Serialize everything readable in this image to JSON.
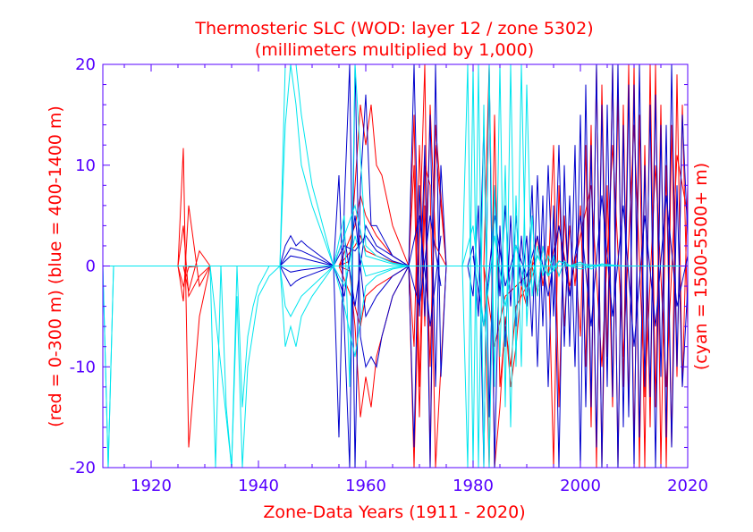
{
  "chart_data": {
    "type": "line",
    "title": "Thermosteric SLC (WOD: layer 12 / zone 5302)",
    "subtitle": "(millimeters multiplied by 1,000)",
    "xlabel": "Zone-Data Years (1911 - 2020)",
    "ylabel_left": "(red = 0-300 m)  (blue = 400-1400 m)",
    "ylabel_right": "(cyan = 1500-5500+ m)",
    "xlim": [
      1911,
      2020
    ],
    "ylim": [
      -20,
      20
    ],
    "x_ticks": [
      1920,
      1940,
      1960,
      1980,
      2000,
      2020
    ],
    "y_ticks": [
      -20,
      -10,
      0,
      10,
      20
    ],
    "grid": false,
    "colors": {
      "axis": "#5500ff",
      "text": "#ff0000"
    },
    "series": [
      {
        "group": "red",
        "color": "#ff0000",
        "x": [
          1925,
          1926,
          1927,
          1929,
          1931,
          1955,
          1957,
          1958,
          1959,
          1960,
          1961,
          1962,
          1963,
          1965,
          1968,
          1969,
          1970,
          1971,
          1972,
          1973,
          1975,
          1977
        ],
        "values": [
          0,
          11.7,
          -18,
          -5,
          0,
          0,
          0.5,
          8,
          16,
          12,
          16,
          10,
          9,
          4,
          0,
          -20,
          2,
          20,
          -20,
          14,
          0,
          0
        ]
      },
      {
        "group": "red",
        "color": "#ff0000",
        "x": [
          1925,
          1926,
          1927,
          1929,
          1931,
          1955,
          1957,
          1958,
          1959,
          1960,
          1961,
          1962,
          1963,
          1965,
          1968,
          1969,
          1970,
          1971,
          1972,
          1973,
          1975,
          1977
        ],
        "values": [
          0,
          4,
          -3,
          -1,
          0,
          0,
          -0.5,
          -6,
          -15,
          -11,
          -14,
          -9,
          -7,
          -3,
          0,
          15,
          -12,
          10,
          8,
          -20,
          0,
          0
        ]
      },
      {
        "group": "red",
        "color": "#ff0000",
        "x": [
          1925,
          1926,
          1927,
          1929,
          1931,
          1955,
          1958,
          1959,
          1960,
          1962,
          1965,
          1968,
          1969,
          1970,
          1971,
          1972,
          1973,
          1975
        ],
        "values": [
          0,
          -2,
          -0.1,
          0,
          0,
          0,
          4,
          7,
          5,
          3,
          1,
          0,
          -8,
          12,
          -6,
          16,
          2,
          0
        ]
      },
      {
        "group": "red",
        "color": "#ff0000",
        "x": [
          1925,
          1926,
          1927,
          1929,
          1931,
          1955,
          1958,
          1959,
          1960,
          1962,
          1965,
          1968,
          1969,
          1970,
          1971,
          1972,
          1973,
          1975
        ],
        "values": [
          0,
          -3.5,
          6,
          -2,
          0,
          0,
          -4,
          -6,
          -3,
          -2,
          -1,
          0,
          10,
          -15,
          6,
          -10,
          12,
          0
        ]
      },
      {
        "group": "red",
        "color": "#ff0000",
        "x": [
          1925,
          1926,
          1927,
          1929,
          1931,
          1955,
          1958,
          1959,
          1960,
          1962,
          1965,
          1968
        ],
        "values": [
          0,
          0,
          -2.5,
          1.5,
          0,
          0,
          2,
          3,
          1.5,
          1,
          0.4,
          0
        ]
      },
      {
        "group": "red",
        "color": "#ff0000",
        "x": [
          1982,
          1983,
          1984,
          1985,
          1986,
          1987,
          1988,
          1989,
          1990,
          1991,
          1992,
          1993,
          1994,
          1995,
          1996,
          1997,
          1998,
          1999,
          2000,
          2001,
          2002,
          2003,
          2004,
          2005,
          2006,
          2007,
          2008,
          2009,
          2010,
          2011,
          2012,
          2013,
          2014,
          2015,
          2016,
          2017,
          2018,
          2019,
          2020
        ],
        "values": [
          0,
          20,
          -20,
          -14,
          -5,
          -12,
          -8,
          -2,
          -4,
          0,
          3,
          -2,
          2,
          -20,
          8,
          -6,
          4,
          -2,
          6,
          -10,
          14,
          -20,
          18,
          -9,
          20,
          -20,
          16,
          -14,
          20,
          -20,
          12,
          -16,
          20,
          -20,
          10,
          -18,
          19,
          -12,
          8
        ]
      },
      {
        "group": "red",
        "color": "#ff0000",
        "x": [
          1982,
          1983,
          1984,
          1985,
          1986,
          1987,
          1988,
          1989,
          1990,
          1991,
          1992,
          1993,
          1994,
          1995,
          1996,
          1997,
          1998,
          1999,
          2000,
          2001,
          2002,
          2003,
          2004,
          2005,
          2006,
          2007,
          2008,
          2009,
          2010,
          2011,
          2012,
          2013,
          2014,
          2015,
          2016,
          2017,
          2018,
          2019,
          2020
        ],
        "values": [
          0,
          -20,
          15,
          -12,
          -6,
          -10,
          -4,
          -3,
          -2,
          0,
          -3,
          2,
          -1,
          12,
          -14,
          5,
          -3,
          1,
          -7,
          12,
          -16,
          20,
          -20,
          8,
          -14,
          17,
          -12,
          20,
          -18,
          15,
          -20,
          20,
          -14,
          16,
          -20,
          14,
          -11,
          16,
          -6
        ]
      },
      {
        "group": "red",
        "color": "#ff0000",
        "x": [
          1982,
          1984,
          1986,
          1988,
          1990,
          1992,
          1994,
          1996,
          1998,
          2000,
          2002,
          2004,
          2006,
          2008,
          2010,
          2012,
          2014,
          2016,
          2018,
          2020
        ],
        "values": [
          0,
          -8,
          -3,
          -2,
          -1,
          1,
          -1,
          4,
          -2,
          3,
          8,
          -10,
          12,
          -9,
          14,
          -13,
          10,
          -12,
          11,
          5
        ]
      },
      {
        "group": "blue",
        "color": "#0000cc",
        "x": [
          1944,
          1945,
          1946,
          1947,
          1948,
          1949,
          1954,
          1955,
          1956,
          1957,
          1958,
          1959,
          1960,
          1961,
          1962,
          1963,
          1965,
          1968,
          1969,
          1970,
          1971,
          1972,
          1973,
          1974,
          1975,
          1977
        ],
        "values": [
          0,
          2,
          3,
          2,
          2.5,
          2,
          0,
          -17,
          6,
          20,
          -20,
          8,
          17,
          4,
          4,
          3,
          1,
          0,
          20,
          -5,
          12,
          -20,
          20,
          -11,
          0,
          0
        ]
      },
      {
        "group": "blue",
        "color": "#0000cc",
        "x": [
          1944,
          1945,
          1946,
          1947,
          1948,
          1949,
          1954,
          1955,
          1956,
          1957,
          1958,
          1959,
          1960,
          1961,
          1962,
          1963,
          1965,
          1968,
          1969,
          1970,
          1971,
          1972,
          1973,
          1974,
          1975,
          1977
        ],
        "values": [
          0,
          -1,
          -2,
          -1.5,
          -1.2,
          -1,
          0,
          9,
          -6,
          -20,
          20,
          -7,
          -10,
          -9,
          -10,
          -7,
          -3,
          0,
          -18,
          8,
          -5,
          15,
          -12,
          10,
          0,
          0
        ]
      },
      {
        "group": "blue",
        "color": "#0000cc",
        "x": [
          1944,
          1946,
          1948,
          1954,
          1956,
          1958,
          1960,
          1962,
          1965,
          1968,
          1970,
          1972,
          1974
        ],
        "values": [
          0,
          1,
          0.8,
          0,
          3,
          -4,
          4,
          2,
          1,
          0,
          5,
          -6,
          3
        ]
      },
      {
        "group": "blue",
        "color": "#0000cc",
        "x": [
          1944,
          1946,
          1948,
          1954,
          1956,
          1958,
          1960,
          1962,
          1965,
          1968,
          1970,
          1972,
          1974
        ],
        "values": [
          0,
          -0.6,
          -0.4,
          0,
          -3,
          5,
          -5,
          -3,
          -1,
          0,
          -4,
          5,
          -2
        ]
      },
      {
        "group": "blue",
        "color": "#0000cc",
        "x": [
          1944,
          1946,
          1948,
          1954,
          1956,
          1958,
          1960,
          1962,
          1965,
          1968
        ],
        "values": [
          0,
          1.8,
          1.5,
          0,
          2,
          1.5,
          3,
          1.5,
          0.5,
          0
        ]
      },
      {
        "group": "blue",
        "color": "#0000cc",
        "x": [
          1979,
          1980,
          1981,
          1982,
          1983,
          1984,
          1985,
          1986,
          1987,
          1988,
          1989,
          1990,
          1991,
          1992,
          1993,
          1994,
          1995,
          1996,
          1997,
          1998,
          1999,
          2000,
          2001,
          2002,
          2003,
          2004,
          2005,
          2006,
          2007,
          2008,
          2009,
          2010,
          2011,
          2012,
          2013,
          2014,
          2015,
          2016,
          2017,
          2018,
          2019,
          2020
        ],
        "values": [
          0,
          -3,
          6,
          -20,
          20,
          -20,
          4,
          -8,
          5,
          -6,
          3,
          -4,
          8,
          -10,
          7,
          -12,
          6,
          -20,
          10,
          -8,
          12,
          -20,
          18,
          -14,
          20,
          -20,
          16,
          -13,
          20,
          -16,
          18,
          -20,
          20,
          -12,
          16,
          -20,
          14,
          -17,
          20,
          -10,
          15,
          3
        ]
      },
      {
        "group": "blue",
        "color": "#0000cc",
        "x": [
          1979,
          1980,
          1981,
          1982,
          1983,
          1984,
          1985,
          1986,
          1987,
          1988,
          1989,
          1990,
          1991,
          1992,
          1993,
          1994,
          1995,
          1996,
          1997,
          1998,
          1999,
          2000,
          2001,
          2002,
          2003,
          2004,
          2005,
          2006,
          2007,
          2008,
          2009,
          2010,
          2011,
          2012,
          2013,
          2014,
          2015,
          2016,
          2017,
          2018,
          2019,
          2020
        ],
        "values": [
          0,
          2,
          -5,
          14,
          -15,
          8,
          -3,
          6,
          -4,
          5,
          -2,
          3,
          -7,
          9,
          -6,
          10,
          -5,
          12,
          -8,
          7,
          -10,
          15,
          -14,
          12,
          -18,
          16,
          -12,
          20,
          -20,
          14,
          -15,
          18,
          -17,
          10,
          -13,
          17,
          -11,
          14,
          -18,
          8,
          -12,
          -2
        ]
      },
      {
        "group": "blue",
        "color": "#0000cc",
        "x": [
          1980,
          1982,
          1984,
          1986,
          1988,
          1990,
          1992,
          1994,
          1996,
          1998,
          2000,
          2002,
          2004,
          2006,
          2008,
          2010,
          2012,
          2014,
          2016,
          2018,
          2020
        ],
        "values": [
          1,
          -6,
          5,
          -2,
          2,
          -1,
          3,
          -3,
          4,
          -3,
          5,
          -6,
          7,
          -5,
          6,
          -8,
          5,
          -6,
          7,
          -4,
          1
        ]
      },
      {
        "group": "cyan",
        "color": "#00e5ee",
        "x": [
          1911,
          1912,
          1913,
          1920,
          1931,
          1932,
          1933,
          1934,
          1935,
          1936,
          1937,
          1938,
          1939,
          1940,
          1941,
          1942,
          1944,
          1945,
          1946,
          1947,
          1948,
          1950,
          1954,
          1956,
          1957,
          1958,
          1960,
          1962,
          1965,
          1968
        ],
        "values": [
          0,
          -20,
          0,
          0,
          0,
          -20,
          0,
          -14,
          -20,
          0,
          -14,
          -7,
          -4,
          -2,
          -1,
          0,
          0,
          20,
          20,
          20,
          15,
          8,
          0,
          5,
          -12,
          20,
          2,
          1,
          0.3,
          0
        ]
      },
      {
        "group": "cyan",
        "color": "#00e5ee",
        "x": [
          1911,
          1912,
          1913,
          1920,
          1931,
          1933,
          1935,
          1936,
          1937,
          1938,
          1940,
          1942,
          1944,
          1945,
          1946,
          1947,
          1948,
          1950,
          1954,
          1956,
          1958,
          1960,
          1962,
          1965,
          1968
        ],
        "values": [
          0,
          -20,
          0,
          0,
          0,
          -10,
          -20,
          -3,
          -20,
          -10,
          -3,
          -1,
          0,
          -8,
          -6,
          -8,
          -5,
          -3,
          0,
          -4,
          -9,
          -2,
          -1,
          -0.3,
          0
        ]
      },
      {
        "group": "cyan",
        "color": "#00e5ee",
        "x": [
          1944,
          1945,
          1946,
          1947,
          1948,
          1950,
          1954,
          1956,
          1958,
          1960,
          1965,
          1968
        ],
        "values": [
          0,
          -4,
          -5,
          -4,
          -3,
          -2,
          0,
          -2,
          3,
          -1,
          -0.2,
          0
        ]
      },
      {
        "group": "cyan",
        "color": "#00e5ee",
        "x": [
          1944,
          1945,
          1946,
          1947,
          1948,
          1950,
          1954,
          1956,
          1958,
          1960,
          1965,
          1968
        ],
        "values": [
          0,
          14,
          20,
          16,
          10,
          6,
          0,
          3,
          6,
          1,
          0.2,
          0
        ]
      },
      {
        "group": "cyan",
        "color": "#00e5ee",
        "x": [
          1978,
          1979,
          1980,
          1981,
          1982,
          1983,
          1984,
          1985,
          1986,
          1987,
          1988,
          1989,
          1990,
          1991,
          1992,
          1993,
          1994,
          1995,
          1996,
          1997,
          1998,
          2000,
          2002,
          2004,
          2006,
          2008
        ],
        "values": [
          0,
          20,
          -20,
          20,
          -20,
          20,
          -12,
          20,
          -14,
          20,
          -10,
          20,
          -6,
          5,
          -3,
          2,
          -1,
          1,
          -1,
          0.5,
          0,
          0.4,
          -0.3,
          0.2,
          0,
          0
        ]
      },
      {
        "group": "cyan",
        "color": "#00e5ee",
        "x": [
          1978,
          1979,
          1980,
          1981,
          1982,
          1983,
          1984,
          1985,
          1986,
          1987,
          1988,
          1989,
          1990,
          1991,
          1992,
          1993,
          1994,
          1995,
          1996,
          1998,
          2000,
          2004,
          2008
        ],
        "values": [
          0,
          -20,
          20,
          -20,
          16,
          -20,
          8,
          -9,
          10,
          -16,
          7,
          -10,
          18,
          -3,
          2,
          -1,
          1,
          -0.5,
          0.5,
          0,
          -0.3,
          0.2,
          0
        ]
      },
      {
        "group": "cyan",
        "color": "#00e5ee",
        "x": [
          1978,
          1980,
          1982,
          1984,
          1986,
          1988,
          1990,
          1992,
          1994,
          1996,
          1998,
          2000,
          2005,
          2010,
          2015,
          2020
        ],
        "values": [
          0,
          4,
          -6,
          3,
          -4,
          2,
          -3,
          1,
          -1,
          0.5,
          0,
          0.2,
          0,
          0,
          0,
          0
        ]
      },
      {
        "group": "cyan",
        "color": "#00e5ee",
        "x": [
          1911,
          1931,
          1944,
          1968,
          1978,
          2020
        ],
        "values": [
          0,
          0,
          0,
          0,
          0,
          0
        ]
      }
    ]
  }
}
